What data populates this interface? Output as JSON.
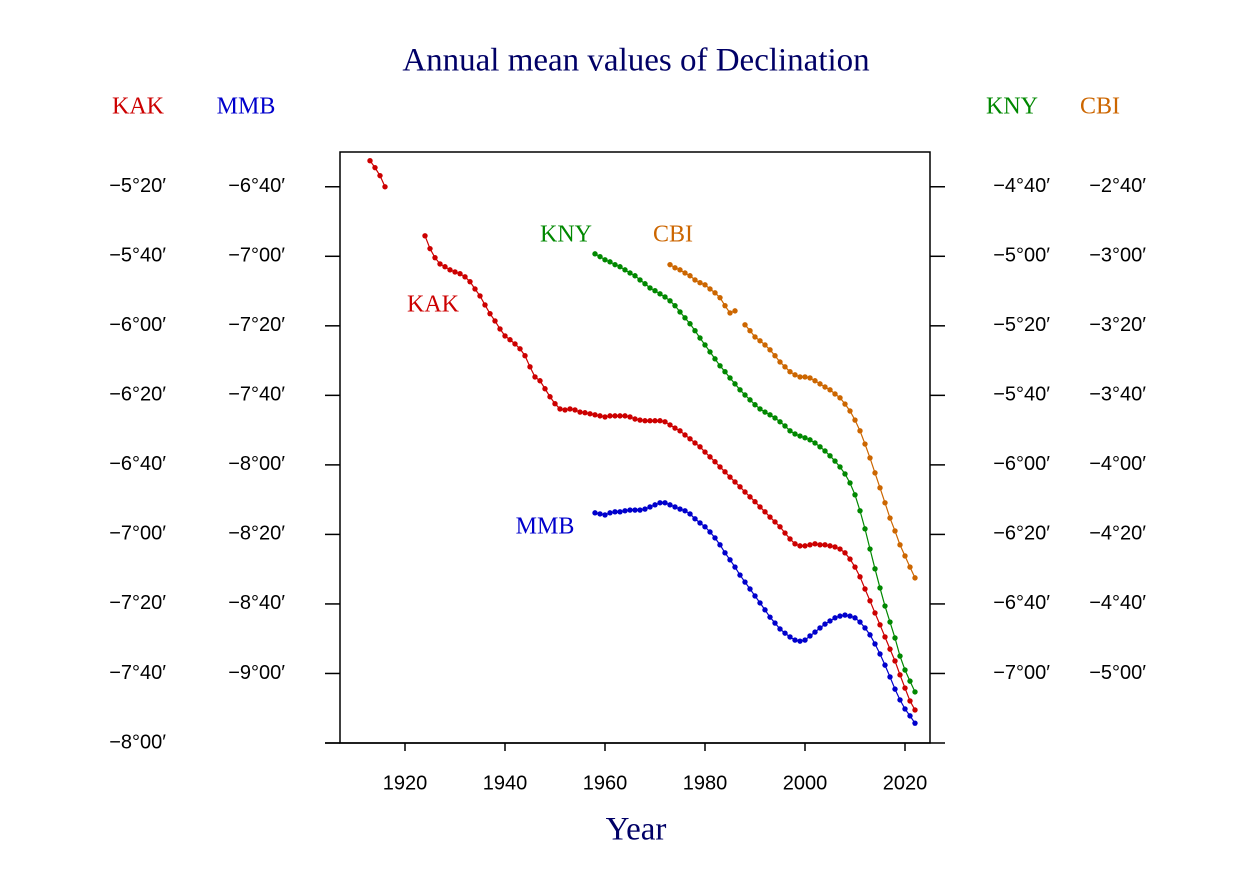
{
  "chart_data": {
    "type": "line",
    "title": "Annual mean values of Declination",
    "x_label": "Year",
    "xlim": [
      1907,
      2025
    ],
    "xticks": [
      1920,
      1940,
      1960,
      1980,
      2000,
      2020
    ],
    "x": [
      1913,
      1914,
      1915,
      1916,
      1917,
      1918,
      1919,
      1920,
      1921,
      1922,
      1923,
      1924,
      1925,
      1926,
      1927,
      1928,
      1929,
      1930,
      1931,
      1932,
      1933,
      1934,
      1935,
      1936,
      1937,
      1938,
      1939,
      1940,
      1941,
      1942,
      1943,
      1944,
      1945,
      1946,
      1947,
      1948,
      1949,
      1950,
      1951,
      1952,
      1953,
      1954,
      1955,
      1956,
      1957,
      1958,
      1959,
      1960,
      1961,
      1962,
      1963,
      1964,
      1965,
      1966,
      1967,
      1968,
      1969,
      1970,
      1971,
      1972,
      1973,
      1974,
      1975,
      1976,
      1977,
      1978,
      1979,
      1980,
      1981,
      1982,
      1983,
      1984,
      1985,
      1986,
      1987,
      1988,
      1989,
      1990,
      1991,
      1992,
      1993,
      1994,
      1995,
      1996,
      1997,
      1998,
      1999,
      2000,
      2001,
      2002,
      2003,
      2004,
      2005,
      2006,
      2007,
      2008,
      2009,
      2010,
      2011,
      2012,
      2013,
      2014,
      2015,
      2016,
      2017,
      2018,
      2019,
      2020,
      2021,
      2022
    ],
    "series": [
      {
        "name": "KAK",
        "color": "#cc0000",
        "axis_side": "left",
        "ylim": [
          -480,
          -310
        ],
        "yticks": [
          {
            "value": -320,
            "label": "−5°20′"
          },
          {
            "value": -340,
            "label": "−5°40′"
          },
          {
            "value": -360,
            "label": "−6°00′"
          },
          {
            "value": -380,
            "label": "−6°20′"
          },
          {
            "value": -400,
            "label": "−6°40′"
          },
          {
            "value": -420,
            "label": "−7°00′"
          },
          {
            "value": -440,
            "label": "−7°20′"
          },
          {
            "value": -460,
            "label": "−7°40′"
          },
          {
            "value": -480,
            "label": "−8°00′"
          }
        ],
        "values": [
          -312.5,
          -314.5,
          -316.8,
          -320.0,
          null,
          null,
          null,
          null,
          null,
          null,
          null,
          -334.1,
          -337.8,
          -340.4,
          -342.2,
          -343.0,
          -343.9,
          -344.5,
          -345.0,
          -345.9,
          -347.3,
          -349.4,
          -351.4,
          -354.0,
          -356.5,
          -358.6,
          -360.9,
          -362.9,
          -364.0,
          -365.2,
          -366.6,
          -368.6,
          -371.8,
          -374.7,
          -375.8,
          -378.1,
          -380.4,
          -382.4,
          -383.9,
          -384.2,
          -383.9,
          -384.2,
          -384.8,
          -385.0,
          -385.3,
          -385.6,
          -385.9,
          -386.2,
          -385.9,
          -385.9,
          -385.9,
          -385.9,
          -386.2,
          -386.8,
          -387.1,
          -387.3,
          -387.3,
          -387.3,
          -387.3,
          -387.6,
          -388.5,
          -389.4,
          -390.2,
          -391.4,
          -392.5,
          -393.7,
          -394.8,
          -396.3,
          -397.7,
          -399.1,
          -400.6,
          -402.0,
          -403.5,
          -404.9,
          -406.3,
          -407.8,
          -409.2,
          -410.6,
          -412.1,
          -413.5,
          -415.0,
          -416.4,
          -417.8,
          -419.6,
          -421.3,
          -422.7,
          -423.3,
          -423.3,
          -423.0,
          -422.7,
          -423.0,
          -423.0,
          -423.3,
          -423.6,
          -424.2,
          -425.3,
          -427.1,
          -429.4,
          -432.2,
          -435.7,
          -439.1,
          -442.6,
          -446.0,
          -449.5,
          -453.0,
          -456.4,
          -460.4,
          -464.2,
          -467.9,
          -470.5
        ]
      },
      {
        "name": "MMB",
        "color": "#0000cc",
        "axis_side": "left",
        "ylim": [
          -560,
          -390
        ],
        "yticks": [
          {
            "value": -400,
            "label": "−6°40′"
          },
          {
            "value": -420,
            "label": "−7°00′"
          },
          {
            "value": -440,
            "label": "−7°20′"
          },
          {
            "value": -460,
            "label": "−7°40′"
          },
          {
            "value": -480,
            "label": "−8°00′"
          },
          {
            "value": -500,
            "label": "−8°20′"
          },
          {
            "value": -520,
            "label": "−8°40′"
          },
          {
            "value": -540,
            "label": "−9°00′"
          }
        ],
        "values": [
          null,
          null,
          null,
          null,
          null,
          null,
          null,
          null,
          null,
          null,
          null,
          null,
          null,
          null,
          null,
          null,
          null,
          null,
          null,
          null,
          null,
          null,
          null,
          null,
          null,
          null,
          null,
          null,
          null,
          null,
          null,
          null,
          null,
          null,
          null,
          null,
          null,
          null,
          null,
          null,
          null,
          null,
          null,
          null,
          null,
          -493.8,
          -494.1,
          -494.4,
          -493.8,
          -493.5,
          -493.5,
          -493.2,
          -493.0,
          -493.0,
          -493.0,
          -492.7,
          -492.1,
          -491.5,
          -490.9,
          -490.9,
          -491.5,
          -492.1,
          -492.7,
          -493.2,
          -494.1,
          -495.5,
          -496.7,
          -497.8,
          -499.3,
          -501.0,
          -503.0,
          -505.3,
          -507.3,
          -509.4,
          -511.7,
          -513.7,
          -515.7,
          -517.7,
          -519.7,
          -521.7,
          -523.8,
          -525.5,
          -527.2,
          -528.4,
          -529.5,
          -530.4,
          -530.7,
          -530.4,
          -529.2,
          -528.1,
          -526.9,
          -525.8,
          -524.9,
          -524.0,
          -523.5,
          -523.2,
          -523.5,
          -524.0,
          -525.2,
          -526.9,
          -528.9,
          -531.5,
          -534.4,
          -537.6,
          -541.0,
          -544.5,
          -547.6,
          -550.2,
          -552.2,
          -554.3
        ]
      },
      {
        "name": "KNY",
        "color": "#008800",
        "axis_side": "right",
        "ylim": [
          -440,
          -270
        ],
        "yticks": [
          {
            "value": -280,
            "label": "−4°40′"
          },
          {
            "value": -300,
            "label": "−5°00′"
          },
          {
            "value": -320,
            "label": "−5°20′"
          },
          {
            "value": -340,
            "label": "−5°40′"
          },
          {
            "value": -360,
            "label": "−6°00′"
          },
          {
            "value": -380,
            "label": "−6°20′"
          },
          {
            "value": -400,
            "label": "−6°40′"
          },
          {
            "value": -420,
            "label": "−7°00′"
          }
        ],
        "values": [
          null,
          null,
          null,
          null,
          null,
          null,
          null,
          null,
          null,
          null,
          null,
          null,
          null,
          null,
          null,
          null,
          null,
          null,
          null,
          null,
          null,
          null,
          null,
          null,
          null,
          null,
          null,
          null,
          null,
          null,
          null,
          null,
          null,
          null,
          null,
          null,
          null,
          null,
          null,
          null,
          null,
          null,
          null,
          null,
          null,
          -299.3,
          -300.1,
          -301.0,
          -301.6,
          -302.4,
          -303.0,
          -303.9,
          -304.8,
          -305.6,
          -306.8,
          -307.9,
          -309.1,
          -309.9,
          -310.8,
          -311.7,
          -312.8,
          -314.2,
          -316.0,
          -317.7,
          -319.4,
          -321.4,
          -323.5,
          -325.5,
          -327.5,
          -329.5,
          -331.5,
          -333.2,
          -335.0,
          -336.7,
          -338.4,
          -339.9,
          -341.3,
          -342.7,
          -343.9,
          -344.8,
          -345.6,
          -346.5,
          -347.6,
          -348.8,
          -350.2,
          -351.1,
          -351.7,
          -352.2,
          -352.8,
          -353.7,
          -354.8,
          -356.0,
          -357.4,
          -358.9,
          -360.6,
          -362.6,
          -365.2,
          -368.6,
          -373.2,
          -378.4,
          -384.2,
          -389.9,
          -395.4,
          -400.6,
          -405.2,
          -409.8,
          -415.0,
          -419.0,
          -422.2,
          -425.3
        ]
      },
      {
        "name": "CBI",
        "color": "#cc6600",
        "axis_side": "right",
        "ylim": [
          -320,
          -150
        ],
        "yticks": [
          {
            "value": -160,
            "label": "−2°40′"
          },
          {
            "value": -180,
            "label": "−3°00′"
          },
          {
            "value": -200,
            "label": "−3°20′"
          },
          {
            "value": -220,
            "label": "−3°40′"
          },
          {
            "value": -240,
            "label": "−4°00′"
          },
          {
            "value": -260,
            "label": "−4°20′"
          },
          {
            "value": -280,
            "label": "−4°40′"
          },
          {
            "value": -300,
            "label": "−5°00′"
          }
        ],
        "values": [
          null,
          null,
          null,
          null,
          null,
          null,
          null,
          null,
          null,
          null,
          null,
          null,
          null,
          null,
          null,
          null,
          null,
          null,
          null,
          null,
          null,
          null,
          null,
          null,
          null,
          null,
          null,
          null,
          null,
          null,
          null,
          null,
          null,
          null,
          null,
          null,
          null,
          null,
          null,
          null,
          null,
          null,
          null,
          null,
          null,
          null,
          null,
          null,
          null,
          null,
          null,
          null,
          null,
          null,
          null,
          null,
          null,
          null,
          null,
          null,
          -182.4,
          -183.3,
          -183.9,
          -184.8,
          -185.6,
          -186.8,
          -187.6,
          -188.2,
          -189.4,
          -190.5,
          -191.9,
          -194.2,
          -196.3,
          -195.7,
          null,
          -199.7,
          -201.4,
          -203.2,
          -204.3,
          -205.5,
          -206.9,
          -208.6,
          -210.4,
          -211.8,
          -213.2,
          -214.1,
          -214.7,
          -214.7,
          -215.0,
          -215.8,
          -216.7,
          -217.6,
          -218.4,
          -219.6,
          -220.7,
          -222.5,
          -224.5,
          -227.1,
          -230.2,
          -234.0,
          -238.0,
          -242.3,
          -246.6,
          -250.9,
          -255.3,
          -259.0,
          -263.0,
          -266.2,
          -269.4,
          -272.5
        ]
      }
    ]
  }
}
